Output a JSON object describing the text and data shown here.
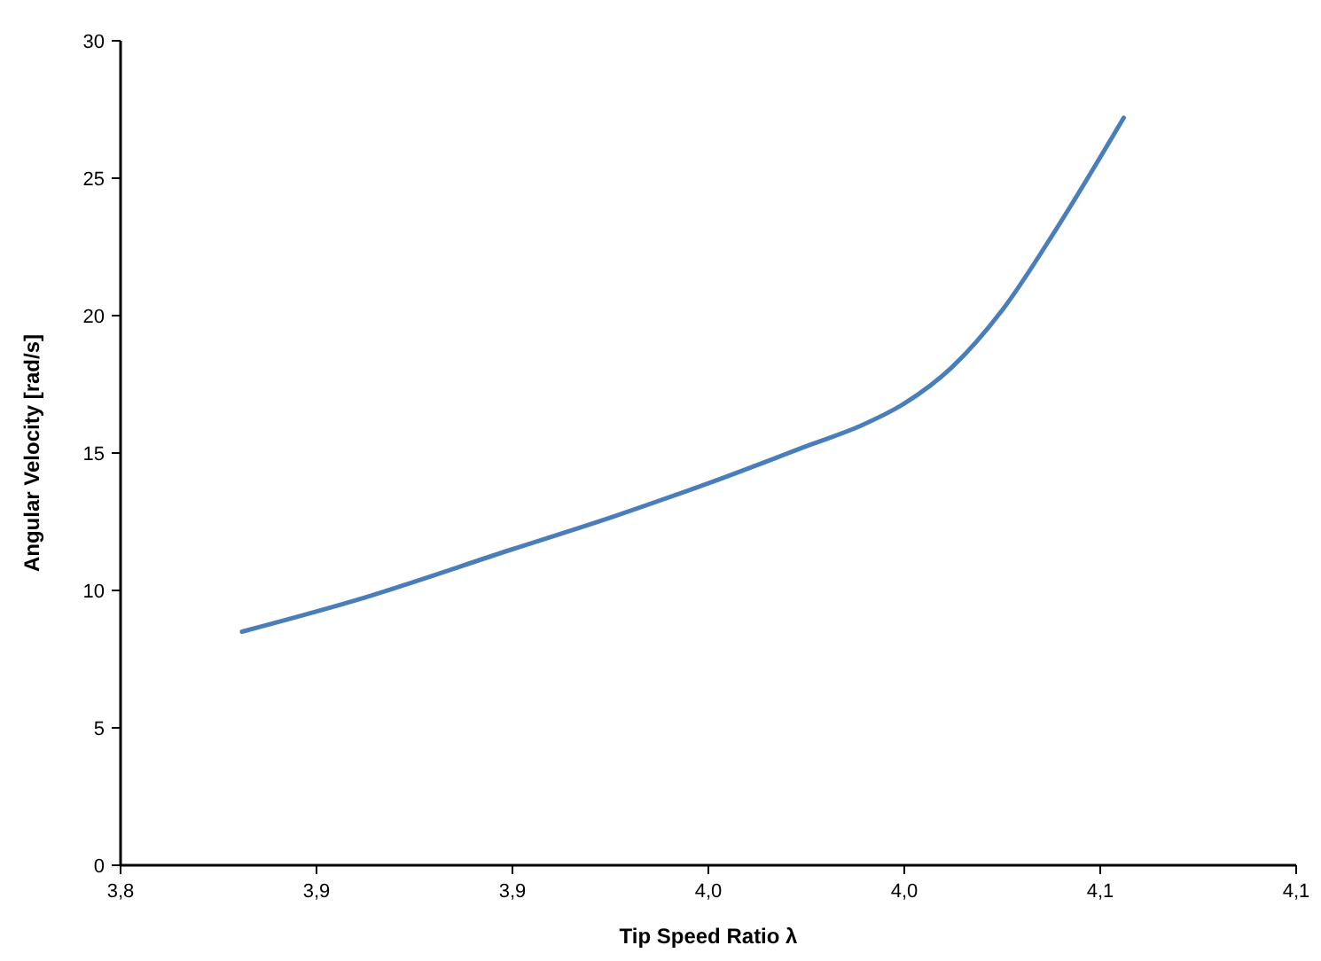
{
  "chart_data": {
    "type": "line",
    "xlabel": "Tip Speed Ratio λ",
    "ylabel": "Angular Velocity [rad/s]",
    "x": [
      3.831,
      3.859,
      3.9,
      3.926,
      3.95,
      3.976,
      3.989,
      4.0,
      4.012,
      4.025,
      4.039,
      4.056
    ],
    "series": [
      {
        "color": "#4a7ebb",
        "values": [
          8.5,
          9.6,
          11.5,
          12.7,
          13.9,
          15.3,
          16.0,
          16.8,
          18.1,
          20.2,
          23.2,
          27.2
        ]
      }
    ],
    "xlim": [
      3.8,
      4.1
    ],
    "xticks": [
      {
        "value": 3.8,
        "label": "3,8"
      },
      {
        "value": 3.85,
        "label": "3,9"
      },
      {
        "value": 3.9,
        "label": "3,9"
      },
      {
        "value": 3.95,
        "label": "4,0"
      },
      {
        "value": 4.0,
        "label": "4,0"
      },
      {
        "value": 4.05,
        "label": "4,1"
      },
      {
        "value": 4.1,
        "label": "4,1"
      }
    ],
    "ylim": [
      0,
      30
    ],
    "yticks": [
      0,
      5,
      10,
      15,
      20,
      25,
      30
    ],
    "grid": false,
    "marker": "none",
    "line_style": "solid"
  }
}
